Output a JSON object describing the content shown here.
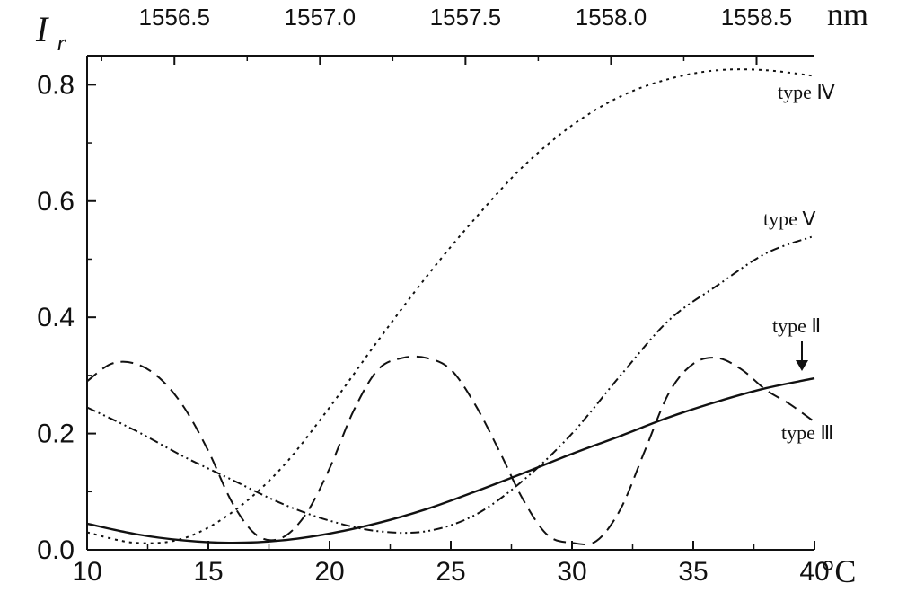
{
  "chart_data": {
    "type": "line",
    "xlabel_unit": "°C",
    "x2label_unit": "nm",
    "ylabel_main": "I",
    "ylabel_sub": "r",
    "xlim": [
      10,
      40
    ],
    "ylim": [
      0,
      0.85
    ],
    "x_ticks": [
      10,
      15,
      20,
      25,
      30,
      35,
      40
    ],
    "y_ticks": [
      0.0,
      0.2,
      0.4,
      0.6,
      0.8
    ],
    "x_tick_labels": [
      "10",
      "15",
      "20",
      "25",
      "30",
      "35",
      "40"
    ],
    "y_tick_labels": [
      "0.0",
      "0.2",
      "0.4",
      "0.6",
      "0.8"
    ],
    "x2_ticks": [
      1556.5,
      1557.0,
      1557.5,
      1558.0,
      1558.5
    ],
    "x2_tick_labels": [
      "1556.5",
      "1557.0",
      "1557.5",
      "1558.0",
      "1558.5"
    ],
    "x2_map": {
      "x_at_10": 1556.2,
      "nm_per_degree": 0.0833
    },
    "grid": false,
    "series": [
      {
        "name": "type II",
        "style": "solid",
        "x": [
          10,
          12,
          14,
          16,
          18,
          20,
          22,
          24,
          26,
          28,
          30,
          32,
          34,
          36,
          38,
          40
        ],
        "y": [
          0.045,
          0.027,
          0.016,
          0.012,
          0.016,
          0.028,
          0.046,
          0.07,
          0.1,
          0.132,
          0.165,
          0.196,
          0.228,
          0.255,
          0.278,
          0.295
        ]
      },
      {
        "name": "type III",
        "style": "dashed",
        "x": [
          10,
          11,
          12,
          13,
          14,
          15,
          16,
          17,
          18,
          19,
          20,
          21,
          22,
          23,
          24,
          25,
          26,
          27,
          28,
          29,
          30,
          31,
          32,
          33,
          34,
          35,
          36,
          37,
          38,
          39,
          40
        ],
        "y": [
          0.29,
          0.32,
          0.32,
          0.295,
          0.245,
          0.17,
          0.08,
          0.025,
          0.02,
          0.06,
          0.14,
          0.24,
          0.31,
          0.33,
          0.33,
          0.31,
          0.25,
          0.17,
          0.085,
          0.025,
          0.012,
          0.015,
          0.07,
          0.17,
          0.27,
          0.32,
          0.33,
          0.31,
          0.275,
          0.25,
          0.22
        ]
      },
      {
        "name": "type IV",
        "style": "dotted",
        "x": [
          10,
          12,
          14,
          16,
          18,
          20,
          22,
          24,
          26,
          28,
          30,
          32,
          34,
          36,
          38,
          40
        ],
        "y": [
          0.03,
          0.012,
          0.02,
          0.065,
          0.14,
          0.245,
          0.36,
          0.47,
          0.57,
          0.66,
          0.73,
          0.78,
          0.81,
          0.825,
          0.825,
          0.815
        ]
      },
      {
        "name": "type V",
        "style": "dash-dot",
        "x": [
          10,
          12,
          14,
          16,
          18,
          20,
          22,
          24,
          26,
          28,
          30,
          32,
          34,
          36,
          38,
          40
        ],
        "y": [
          0.245,
          0.205,
          0.16,
          0.12,
          0.08,
          0.05,
          0.032,
          0.032,
          0.06,
          0.12,
          0.2,
          0.3,
          0.395,
          0.455,
          0.51,
          0.54
        ]
      }
    ],
    "annotations": [
      {
        "text": "type Ⅳ",
        "series": "type IV"
      },
      {
        "text": "type Ⅴ",
        "series": "type V"
      },
      {
        "text": "type Ⅱ",
        "series": "type II",
        "arrow": true
      },
      {
        "text": "type Ⅲ",
        "series": "type III"
      }
    ]
  }
}
